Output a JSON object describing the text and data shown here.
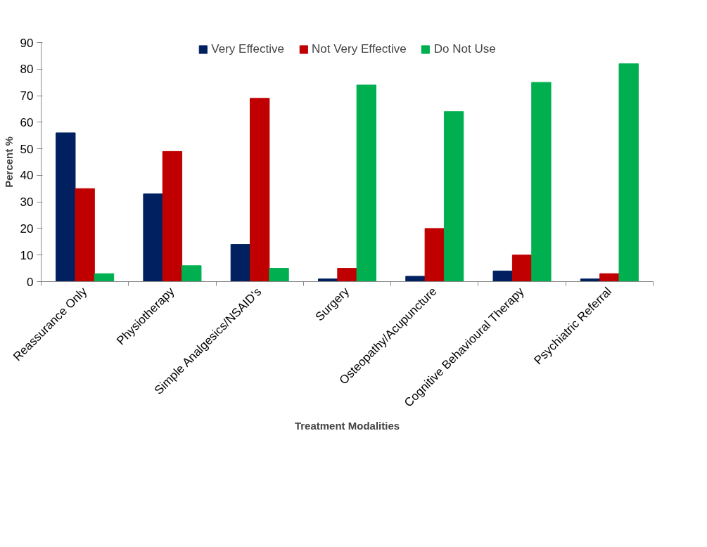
{
  "chart_data": {
    "type": "bar",
    "xlabel": "Treatment Modalities",
    "ylabel": "Percent %",
    "categories": [
      "Reassurance Only",
      "Physiotherapy",
      "Simple Analgesics/NSAID's",
      "Surgery",
      "Osteopathy/Acupuncture",
      "Cognitive Behavioural Therapy",
      "Psychiatric Referral"
    ],
    "series": [
      {
        "name": "Very Effective",
        "color": "#002060",
        "values": [
          56,
          33,
          14,
          1,
          2,
          4,
          1
        ]
      },
      {
        "name": "Not Very Effective",
        "color": "#c00000",
        "values": [
          35,
          49,
          69,
          5,
          20,
          10,
          3
        ]
      },
      {
        "name": "Do Not Use",
        "color": "#00b050",
        "values": [
          3,
          6,
          5,
          74,
          64,
          75,
          82
        ]
      }
    ],
    "ylim": [
      0,
      90
    ],
    "yticks": [
      0,
      10,
      20,
      30,
      40,
      50,
      60,
      70,
      80,
      90
    ],
    "grid": false,
    "legend": "top"
  }
}
